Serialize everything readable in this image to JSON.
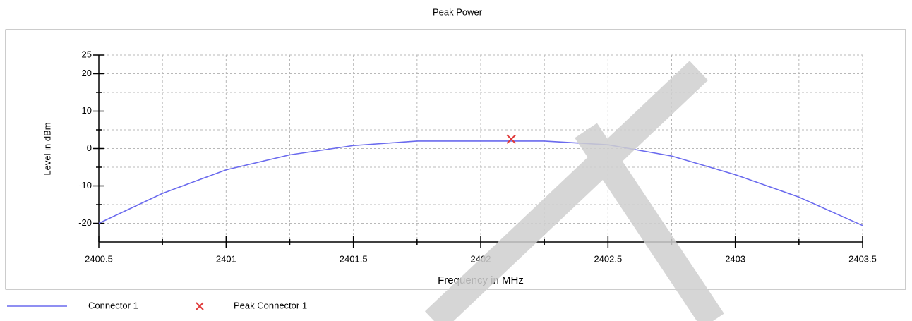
{
  "chart_data": {
    "type": "line",
    "title": "Peak Power",
    "x_label": "Frequency in MHz",
    "y_label": "Level in dBm",
    "xlim": [
      2400.5,
      2403.5
    ],
    "xticks": [
      2400.5,
      2401,
      2401.5,
      2402,
      2402.5,
      2403,
      2403.5
    ],
    "xminorticks": [
      2400.75,
      2401.25,
      2401.75,
      2402.25,
      2402.75,
      2403.25
    ],
    "ylim": [
      -25,
      25
    ],
    "yticks": [
      -20,
      -10,
      0,
      10,
      20,
      25
    ],
    "yminorticks": [
      -15,
      -5,
      5,
      15
    ],
    "grid": true,
    "legend": "bottom",
    "series": [
      {
        "name": "Connector 1",
        "color": "#6a6aee",
        "marker": "none",
        "x": [
          2400.5,
          2400.75,
          2401,
          2401.25,
          2401.5,
          2401.75,
          2402,
          2402.25,
          2402.5,
          2402.75,
          2403,
          2403.25,
          2403.5
        ],
        "values": [
          -20,
          -12,
          -5.7,
          -1.7,
          0.8,
          2,
          2,
          2,
          1,
          -2,
          -7,
          -13,
          -20.6
        ]
      },
      {
        "name": "Peak Connector 1",
        "color": "#e03a3a",
        "marker": "x",
        "x": [
          2402.12
        ],
        "values": [
          2.5
        ]
      }
    ]
  }
}
